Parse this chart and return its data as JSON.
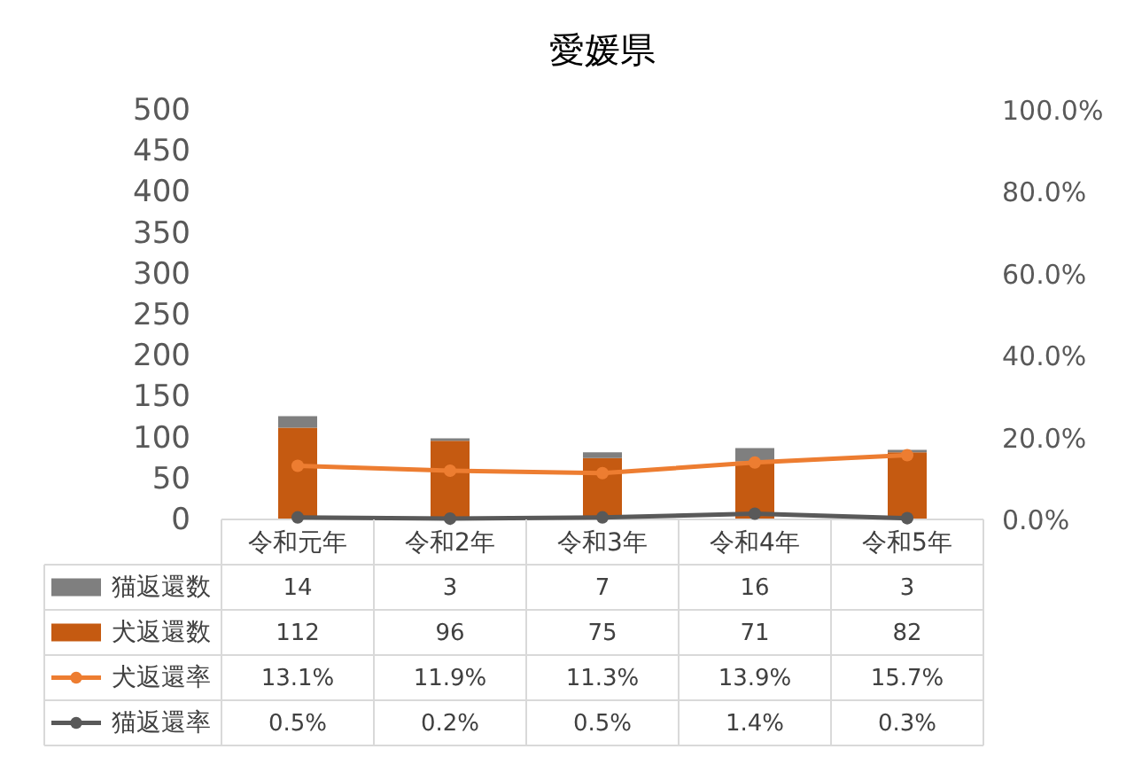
{
  "chart_data": {
    "type": "bar",
    "title": "愛媛県",
    "categories": [
      "令和元年",
      "令和2年",
      "令和3年",
      "令和4年",
      "令和5年"
    ],
    "stacked": true,
    "data_labels": true,
    "legend": "bottom",
    "grid": false,
    "ylim": [
      0,
      500
    ],
    "yticks": [
      0,
      50,
      100,
      150,
      200,
      250,
      300,
      350,
      400,
      450,
      500
    ],
    "y2lim": [
      0,
      100
    ],
    "y2ticks": [
      {
        "value": 0,
        "label": "0.0%"
      },
      {
        "value": 20,
        "label": "20.0%"
      },
      {
        "value": 40,
        "label": "40.0%"
      },
      {
        "value": 60,
        "label": "60.0%"
      },
      {
        "value": 80,
        "label": "80.0%"
      },
      {
        "value": 100,
        "label": "100.0%"
      }
    ],
    "series": [
      {
        "name": "犬返還数",
        "color": "#c55a11",
        "values": [
          112,
          96,
          75,
          71,
          82
        ]
      },
      {
        "name": "猫返還数",
        "color": "#7f7f7f",
        "values": [
          14,
          3,
          7,
          16,
          3
        ]
      },
      {
        "name": "犬返還率",
        "type": "line",
        "axis": "y2",
        "marker": "circle",
        "color": "#ed7d31",
        "values": [
          13.1,
          11.9,
          11.3,
          13.9,
          15.7
        ],
        "value_labels": [
          "13.1%",
          "11.9%",
          "11.3%",
          "13.9%",
          "15.7%"
        ]
      },
      {
        "name": "猫返還率",
        "type": "line",
        "axis": "y2",
        "marker": "circle",
        "color": "#595959",
        "values": [
          0.5,
          0.2,
          0.5,
          1.4,
          0.3
        ],
        "value_labels": [
          "0.5%",
          "0.2%",
          "0.5%",
          "1.4%",
          "0.3%"
        ]
      }
    ]
  }
}
